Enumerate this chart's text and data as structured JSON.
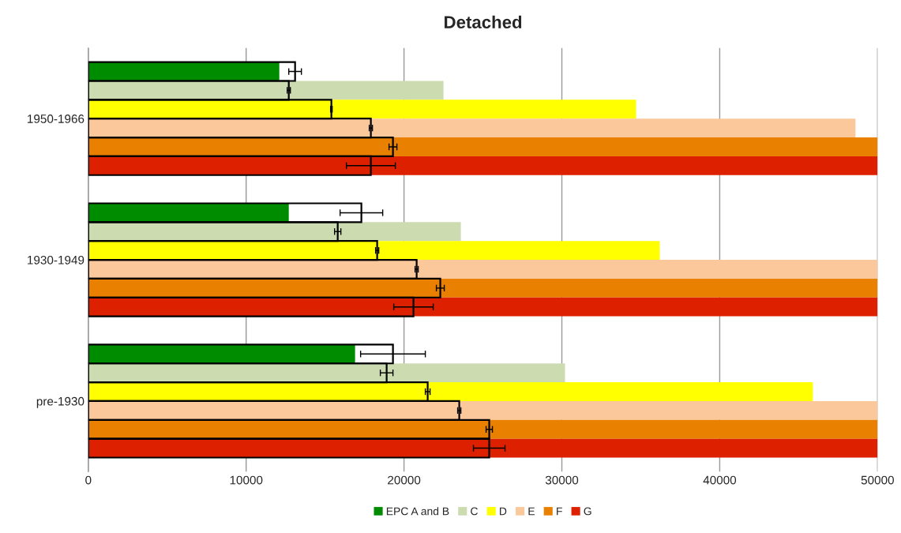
{
  "chart_data": {
    "type": "bar",
    "orientation": "horizontal",
    "title": "Detached",
    "categories": [
      "1950-1966",
      "1930-1949",
      "pre-1930"
    ],
    "series": [
      {
        "name": "EPC A and B",
        "color": "#008c00",
        "values": [
          12100,
          12700,
          16900
        ]
      },
      {
        "name": "C",
        "color": "#ccdcb0",
        "values": [
          22500,
          23600,
          30200
        ]
      },
      {
        "name": "D",
        "color": "#ffff00",
        "values": [
          34700,
          36200,
          45900
        ]
      },
      {
        "name": "E",
        "color": "#fbc89c",
        "values": [
          48600,
          50000,
          50000
        ]
      },
      {
        "name": "F",
        "color": "#ea8000",
        "values": [
          50000,
          50000,
          50000
        ]
      },
      {
        "name": "G",
        "color": "#dc2000",
        "values": [
          50000,
          50000,
          50000
        ]
      },
      {
        "color": null,
        "values": [
          13100,
          17300,
          19300
        ],
        "errors": [
          400,
          1350,
          2050
        ]
      },
      {
        "color": null,
        "values": [
          12700,
          15800,
          18900
        ],
        "errors": [
          100,
          200,
          400
        ]
      },
      {
        "color": null,
        "values": [
          15400,
          18300,
          21500
        ],
        "errors": [
          50,
          100,
          150
        ]
      },
      {
        "color": null,
        "values": [
          17900,
          20800,
          23500
        ],
        "errors": [
          100,
          100,
          100
        ]
      },
      {
        "color": null,
        "values": [
          19300,
          22300,
          25400
        ],
        "errors": [
          250,
          250,
          200
        ]
      },
      {
        "color": null,
        "values": [
          17900,
          20600,
          25400
        ],
        "errors": [
          1550,
          1250,
          1000
        ]
      }
    ],
    "xlim": [
      0,
      50000
    ],
    "xticks": [
      0,
      10000,
      20000,
      30000,
      40000,
      50000
    ],
    "grid": "x",
    "legend": "bottom"
  }
}
